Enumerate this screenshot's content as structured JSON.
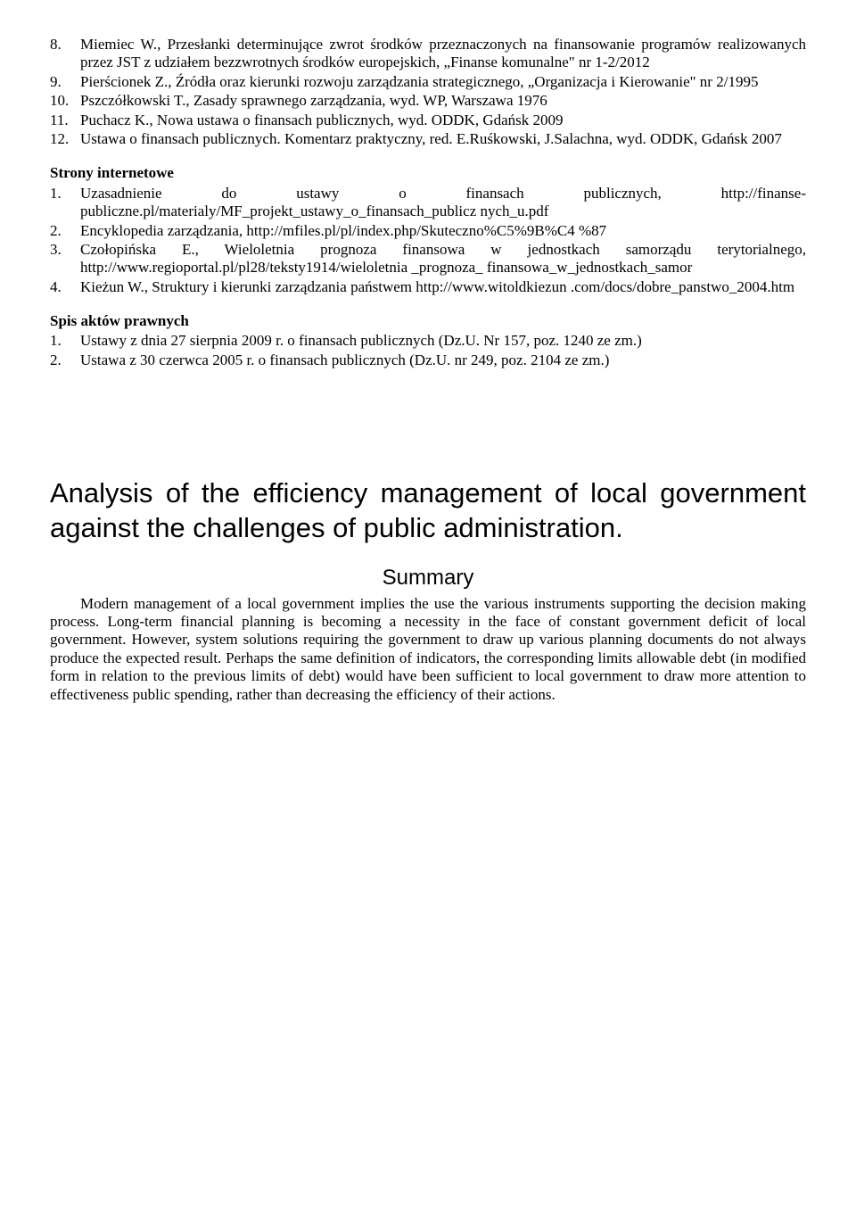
{
  "refs_top": [
    {
      "n": "8.",
      "t": "Miemiec W., Przesłanki determinujące zwrot środków przeznaczonych na finansowanie programów realizowanych przez JST z udziałem bezzwrotnych środków europejskich, „Finanse komunalne\" nr 1-2/2012"
    },
    {
      "n": "9.",
      "t": "Pierścionek Z., Źródła oraz kierunki rozwoju zarządzania strategicznego, „Organizacja i Kierowanie\" nr 2/1995"
    },
    {
      "n": "10.",
      "t": "Pszczółkowski T., Zasady sprawnego zarządzania, wyd. WP, Warszawa 1976"
    },
    {
      "n": "11.",
      "t": "Puchacz K., Nowa ustawa o finansach publicznych, wyd. ODDK, Gdańsk 2009"
    },
    {
      "n": "12.",
      "t": "Ustawa o finansach publicznych. Komentarz praktyczny, red. E.Ruśkowski, J.Salachna, wyd. ODDK, Gdańsk 2007"
    }
  ],
  "sec_internet_head": "Strony internetowe",
  "refs_internet": [
    {
      "n": "1.",
      "t": "Uzasadnienie do ustawy o finansach publicznych, http://finanse-publiczne.pl/materialy/MF_projekt_ustawy_o_finansach_publicz nych_u.pdf"
    },
    {
      "n": "2.",
      "t": "Encyklopedia zarządzania, http://mfiles.pl/pl/index.php/Skuteczno%C5%9B%C4 %87"
    },
    {
      "n": "3.",
      "t": "Czołopińska E., Wieloletnia prognoza finansowa w jednostkach samorządu terytorialnego, http://www.regioportal.pl/pl28/teksty1914/wieloletnia _prognoza_ finansowa_w_jednostkach_samor"
    },
    {
      "n": "4.",
      "t": "Kieżun W., Struktury i kierunki zarządzania państwem http://www.witoldkiezun .com/docs/dobre_panstwo_2004.htm"
    }
  ],
  "sec_acts_head": "Spis aktów prawnych",
  "refs_acts": [
    {
      "n": "1.",
      "t": "Ustawy z dnia 27 sierpnia 2009 r. o finansach publicznych (Dz.U. Nr 157, poz. 1240 ze zm.)"
    },
    {
      "n": "2.",
      "t": "Ustawa z 30 czerwca 2005 r. o finansach publicznych (Dz.U. nr 249, poz. 2104 ze zm.)"
    }
  ],
  "title": "Analysis of the efficiency management of local government against the challenges of public administration.",
  "summary_head": "Summary",
  "summary_body": "Modern management of a local government implies the use the various instruments supporting the decision making process. Long-term financial planning is becoming a necessity in the face of constant government deficit of  local government. However, system solutions requiring the government to draw up various planning documents do not always produce the expected result. Perhaps the same definition of indicators, the corresponding limits allowable debt (in modified form in relation to the previous limits of debt) would have been sufficient to local government to draw more attention to effectiveness public spending, rather than decreasing the efficiency of their actions."
}
